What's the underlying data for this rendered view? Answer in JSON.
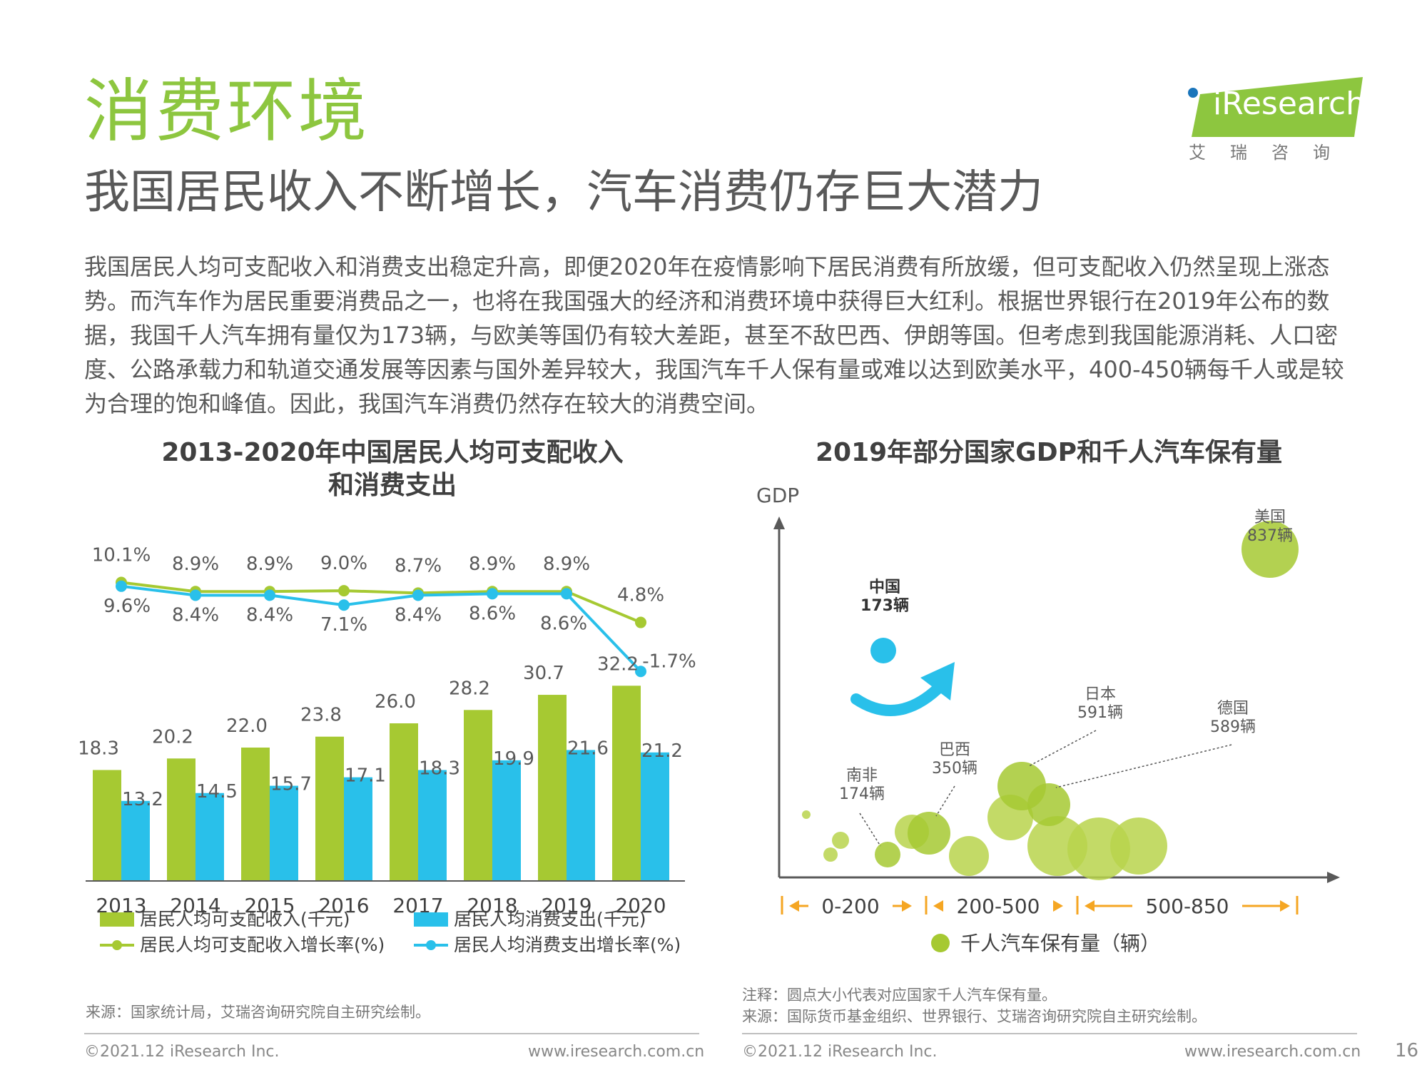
{
  "header": {
    "section_title": "消费环境",
    "headline": "我国居民收入不断增长，汽车消费仍存巨大潜力",
    "body": "我国居民人均可支配收入和消费支出稳定升高，即便2020年在疫情影响下居民消费有所放缓，但可支配收入仍然呈现上涨态势。而汽车作为居民重要消费品之一，也将在我国强大的经济和消费环境中获得巨大红利。根据世界银行在2019年公布的数据，我国千人汽车拥有量仅为173辆，与欧美等国仍有较大差距，甚至不敌巴西、伊朗等国。但考虑到我国能源消耗、人口密度、公路承载力和轨道交通发展等因素与国外差异较大，我国汽车千人保有量或难以达到欧美水平，400-450辆每千人或是较为合理的饱和峰值。因此，我国汽车消费仍然存在较大的消费空间。"
  },
  "logo": {
    "brand": "iResearch",
    "sub": "艾瑞咨询"
  },
  "colors": {
    "green": "#a6c932",
    "blue": "#29c0ea",
    "title_green": "#8dc63f",
    "gray_text": "#595959",
    "axis": "#595959",
    "arrow_orange": "#f5a623"
  },
  "chart_data": [
    {
      "type": "bar",
      "title_line1": "2013-2020年中国居民人均可支配收入",
      "title_line2": "和消费支出",
      "categories": [
        "2013",
        "2014",
        "2015",
        "2016",
        "2017",
        "2018",
        "2019",
        "2020"
      ],
      "series": [
        {
          "name": "居民人均可支配收入(千元)",
          "kind": "bar",
          "color": "#a6c932",
          "values": [
            18.3,
            20.2,
            22.0,
            23.8,
            26.0,
            28.2,
            30.7,
            32.2
          ],
          "labels": [
            "18.3",
            "20.2",
            "22.0",
            "23.8",
            "26.0",
            "28.2",
            "30.7",
            "32.2"
          ]
        },
        {
          "name": "居民人均消费支出(千元)",
          "kind": "bar",
          "color": "#29c0ea",
          "values": [
            13.2,
            14.5,
            15.7,
            17.1,
            18.3,
            19.9,
            21.6,
            21.2
          ],
          "labels": [
            "13.2",
            "14.5",
            "15.7",
            "17.1",
            "18.3",
            "19.9",
            "21.6",
            "21.2"
          ]
        },
        {
          "name": "居民人均可支配收入增长率(%)",
          "kind": "line",
          "color": "#a6c932",
          "values": [
            10.1,
            8.9,
            8.9,
            9.0,
            8.7,
            8.9,
            8.9,
            4.8
          ],
          "labels": [
            "10.1%",
            "8.9%",
            "8.9%",
            "9.0%",
            "8.7%",
            "8.9%",
            "",
            "4.8%"
          ]
        },
        {
          "name": "居民人均消费支出增长率(%)",
          "kind": "line",
          "color": "#29c0ea",
          "values": [
            9.6,
            8.4,
            8.4,
            7.1,
            8.4,
            8.6,
            8.6,
            -1.7
          ],
          "labels": [
            "9.6%",
            "8.4%",
            "8.4%",
            "7.1%",
            "8.4%",
            "8.6%",
            "",
            "-1.7%"
          ]
        }
      ],
      "legend": [
        "居民人均可支配收入(千元)",
        "居民人均消费支出(千元)",
        "居民人均可支配收入增长率(%)",
        "居民人均消费支出增长率(%)"
      ],
      "legend_position": "bottom",
      "grid": false,
      "source": "来源：国家统计局，艾瑞咨询研究院自主研究绘制。"
    },
    {
      "type": "scatter",
      "title": "2019年部分国家GDP和千人汽车保有量",
      "ylabel": "GDP",
      "x_bands": [
        "0-200",
        "200-500",
        "500-850"
      ],
      "legend": "千人汽车保有量（辆）",
      "legend_position": "bottom",
      "grid": false,
      "labeled_points": [
        {
          "name": "中国",
          "value_label": "173辆",
          "vehicles_per_1000": 173,
          "color": "#29c0ea"
        },
        {
          "name": "南非",
          "value_label": "174辆",
          "vehicles_per_1000": 174,
          "color": "#a6c932"
        },
        {
          "name": "巴西",
          "value_label": "350辆",
          "vehicles_per_1000": 350,
          "color": "#a6c932"
        },
        {
          "name": "日本",
          "value_label": "591辆",
          "vehicles_per_1000": 591,
          "color": "#a6c932"
        },
        {
          "name": "德国",
          "value_label": "589辆",
          "vehicles_per_1000": 589,
          "color": "#a6c932"
        },
        {
          "name": "美国",
          "value_label": "837辆",
          "vehicles_per_1000": 837,
          "color": "#a6c932"
        }
      ],
      "unlabeled_points_count": 9,
      "note": "注释：圆点大小代表对应国家千人汽车保有量。",
      "source": "来源：国际货币基金组织、世界银行、艾瑞咨询研究院自主研究绘制。"
    }
  ],
  "footer": {
    "copyright": "©2021.12 iResearch Inc.",
    "url": "www.iresearch.com.cn",
    "page": "16"
  }
}
